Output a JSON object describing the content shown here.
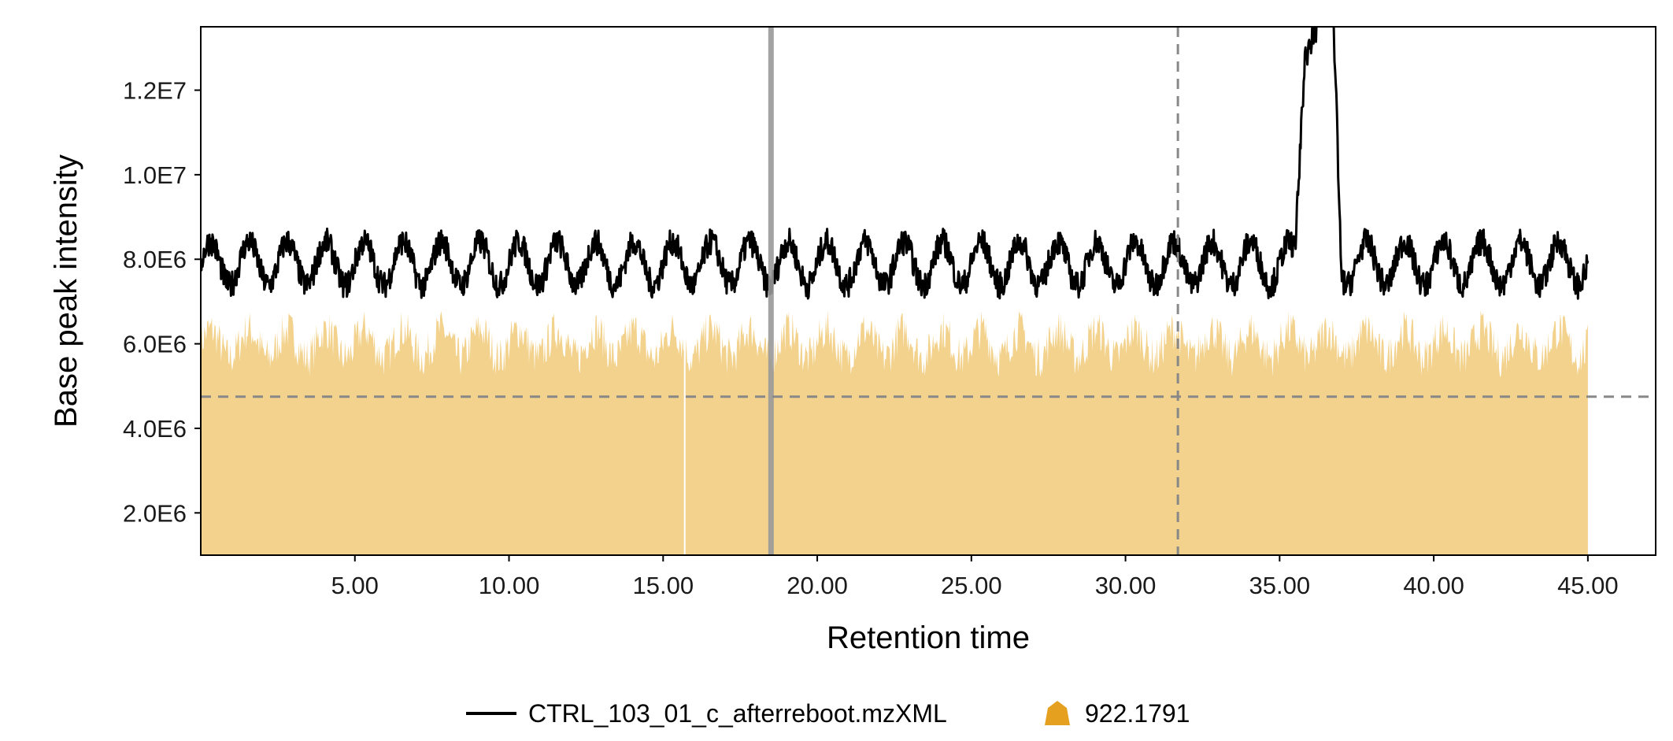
{
  "chart_data": {
    "type": "line",
    "xlabel": "Retention time",
    "ylabel": "Base peak intensity",
    "xlim": [
      0,
      47.2
    ],
    "ylim": [
      1000000,
      13500000
    ],
    "x_ticks": [
      5,
      10,
      15,
      20,
      25,
      30,
      35,
      40,
      45
    ],
    "x_tick_labels": [
      "5.00",
      "10.00",
      "15.00",
      "20.00",
      "25.00",
      "30.00",
      "35.00",
      "40.00",
      "45.00"
    ],
    "y_ticks": [
      2000000,
      4000000,
      6000000,
      8000000,
      10000000,
      12000000
    ],
    "y_tick_labels": [
      "2.0E6",
      "4.0E6",
      "6.0E6",
      "8.0E6",
      "1.0E7",
      "1.2E7"
    ],
    "grid": false,
    "legend_position": "bottom",
    "series": [
      {
        "name": "CTRL_103_01_c_afterreboot.mzXML",
        "kind": "line",
        "color": "#000000",
        "x_range": [
          0,
          45
        ],
        "baseline_mean": 7900000,
        "typical_min": 6700000,
        "typical_max": 9000000,
        "peak": {
          "x_start": 35.5,
          "x_end": 37.0,
          "max": 13600000
        }
      },
      {
        "name": "922.1791",
        "kind": "area",
        "color": "#F2D28C",
        "legend_color": "#E6A020",
        "x_range": [
          0,
          45
        ],
        "typical_min": 5000000,
        "typical_max": 7000000,
        "gap_x": 15.7
      }
    ],
    "reference_lines": [
      {
        "orientation": "vertical",
        "x": 18.5,
        "style": "solid",
        "color": "#999999"
      },
      {
        "orientation": "vertical",
        "x": 31.7,
        "style": "dashed",
        "color": "#888888"
      },
      {
        "orientation": "horizontal",
        "y": 4750000,
        "style": "dashed",
        "color": "#888888"
      }
    ]
  }
}
